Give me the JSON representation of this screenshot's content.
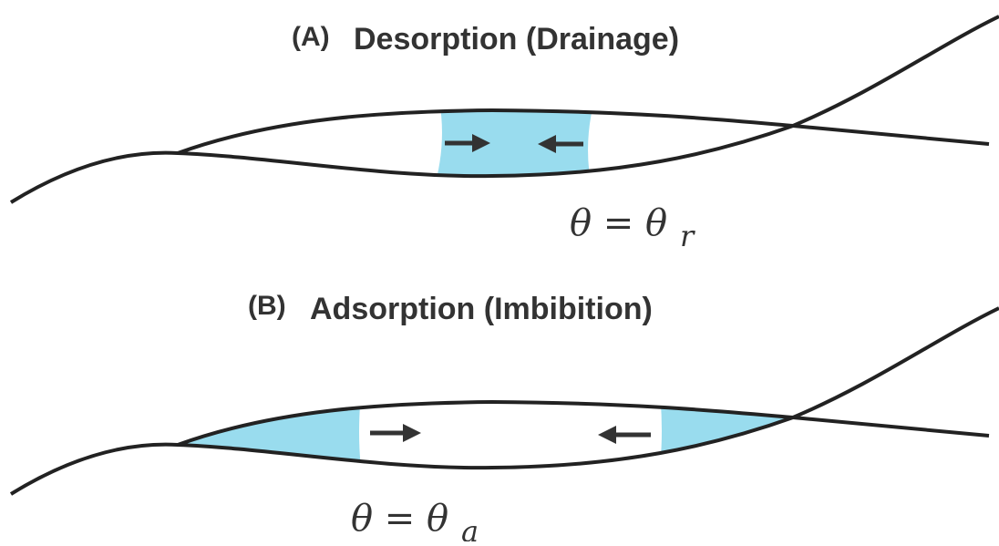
{
  "panels": [
    {
      "label": "(A)",
      "title": "Desorption (Drainage)",
      "equation": "θ = θ",
      "subscript": "r"
    },
    {
      "label": "(B)",
      "title": "Adsorption (Imbibition)",
      "equation": "θ = θ",
      "subscript": "a"
    }
  ]
}
